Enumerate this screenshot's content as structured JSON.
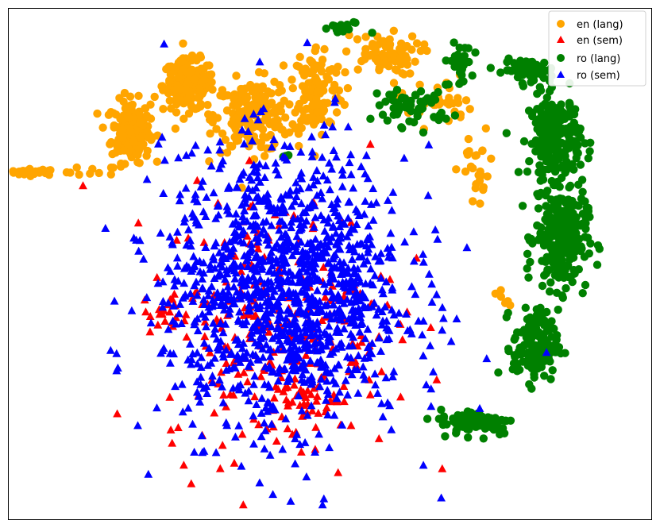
{
  "chart_data": {
    "type": "scatter",
    "title": "",
    "xlabel": "",
    "ylabel": "",
    "xlim": [
      0,
      100
    ],
    "ylim": [
      0,
      100
    ],
    "grid": false,
    "axes_ticks": false,
    "legend_position": "top-right",
    "series": [
      {
        "name": "en (lang)",
        "marker": "circle",
        "color": "#FFA500",
        "regions": [
          {
            "x_center": 4,
            "y_center": 68,
            "x_spread": 4,
            "y_spread": 0.6,
            "n": 35
          },
          {
            "x_center": 13,
            "y_center": 68,
            "x_spread": 4,
            "y_spread": 1.2,
            "n": 10
          },
          {
            "x_center": 19,
            "y_center": 76,
            "x_spread": 3,
            "y_spread": 6,
            "n": 200
          },
          {
            "x_center": 28,
            "y_center": 85,
            "x_spread": 4,
            "y_spread": 5,
            "n": 180
          },
          {
            "x_center": 38,
            "y_center": 79,
            "x_spread": 6,
            "y_spread": 7,
            "n": 180
          },
          {
            "x_center": 48,
            "y_center": 84,
            "x_spread": 4,
            "y_spread": 9,
            "n": 130
          },
          {
            "x_center": 58,
            "y_center": 91,
            "x_spread": 6,
            "y_spread": 4,
            "n": 70
          },
          {
            "x_center": 66,
            "y_center": 82,
            "x_spread": 6,
            "y_spread": 5,
            "n": 40
          },
          {
            "x_center": 73,
            "y_center": 68,
            "x_spread": 3,
            "y_spread": 8,
            "n": 25
          },
          {
            "x_center": 77,
            "y_center": 42,
            "x_spread": 1.2,
            "y_spread": 3,
            "n": 6
          }
        ]
      },
      {
        "name": "en (sem)",
        "marker": "triangle",
        "color": "#FF0000",
        "regions": [
          {
            "x_center": 42,
            "y_center": 38,
            "x_spread": 18,
            "y_spread": 26,
            "n": 260
          },
          {
            "x_center": 25,
            "y_center": 40,
            "x_spread": 3,
            "y_spread": 4,
            "n": 20
          },
          {
            "x_center": 46,
            "y_center": 24,
            "x_spread": 5,
            "y_spread": 3,
            "n": 30
          }
        ]
      },
      {
        "name": "ro (lang)",
        "marker": "circle",
        "color": "#008000",
        "regions": [
          {
            "x_center": 52,
            "y_center": 96,
            "x_spread": 4,
            "y_spread": 1.5,
            "n": 15
          },
          {
            "x_center": 63,
            "y_center": 81,
            "x_spread": 6,
            "y_spread": 4,
            "n": 60
          },
          {
            "x_center": 70,
            "y_center": 89,
            "x_spread": 2,
            "y_spread": 4,
            "n": 30
          },
          {
            "x_center": 81,
            "y_center": 88,
            "x_spread": 4,
            "y_spread": 2,
            "n": 70
          },
          {
            "x_center": 85,
            "y_center": 75,
            "x_spread": 4,
            "y_spread": 8,
            "n": 220
          },
          {
            "x_center": 86,
            "y_center": 55,
            "x_spread": 4,
            "y_spread": 10,
            "n": 260
          },
          {
            "x_center": 82,
            "y_center": 34,
            "x_spread": 3.5,
            "y_spread": 7,
            "n": 150
          },
          {
            "x_center": 73,
            "y_center": 19,
            "x_spread": 6,
            "y_spread": 2.5,
            "n": 90
          },
          {
            "x_center": 43,
            "y_center": 71,
            "x_spread": 1,
            "y_spread": 0.5,
            "n": 4
          }
        ]
      },
      {
        "name": "ro (sem)",
        "marker": "triangle",
        "color": "#0000FF",
        "regions": [
          {
            "x_center": 43,
            "y_center": 45,
            "x_spread": 19,
            "y_spread": 27,
            "n": 1300
          }
        ]
      }
    ]
  },
  "legend": {
    "items": [
      {
        "label": "en (lang)",
        "marker": "circle",
        "color": "#FFA500"
      },
      {
        "label": "en (sem)",
        "marker": "triangle",
        "color": "#FF0000"
      },
      {
        "label": "ro (lang)",
        "marker": "circle",
        "color": "#008000"
      },
      {
        "label": "ro (sem)",
        "marker": "triangle",
        "color": "#0000FF"
      }
    ]
  }
}
